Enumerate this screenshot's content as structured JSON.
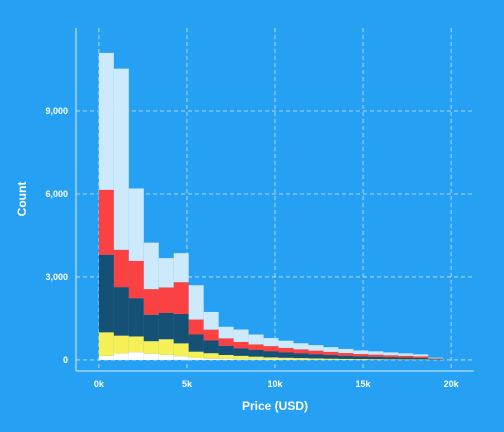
{
  "chart_data": {
    "type": "bar",
    "stacked": true,
    "xlabel": "Price (USD)",
    "ylabel": "Count",
    "xlim": [
      -1300,
      21300
    ],
    "ylim": [
      -400,
      12000
    ],
    "x_ticks": [
      {
        "value": 0,
        "label": "0k"
      },
      {
        "value": 5000,
        "label": "5k"
      },
      {
        "value": 10000,
        "label": "10k"
      },
      {
        "value": 15000,
        "label": "15k"
      },
      {
        "value": 20000,
        "label": "20k"
      }
    ],
    "y_ticks": [
      {
        "value": 0,
        "label": "0"
      },
      {
        "value": 3000,
        "label": "3,000"
      },
      {
        "value": 6000,
        "label": "6,000"
      },
      {
        "value": 9000,
        "label": "9,000"
      }
    ],
    "grid": true,
    "legend": "none",
    "bins": [
      {
        "start": 0,
        "end": 850
      },
      {
        "start": 850,
        "end": 1700
      },
      {
        "start": 1700,
        "end": 2550
      },
      {
        "start": 2550,
        "end": 3400
      },
      {
        "start": 3400,
        "end": 4250
      },
      {
        "start": 4250,
        "end": 5100
      },
      {
        "start": 5100,
        "end": 5950
      },
      {
        "start": 5950,
        "end": 6800
      },
      {
        "start": 6800,
        "end": 7650
      },
      {
        "start": 7650,
        "end": 8500
      },
      {
        "start": 8500,
        "end": 9350
      },
      {
        "start": 9350,
        "end": 10200
      },
      {
        "start": 10200,
        "end": 11050
      },
      {
        "start": 11050,
        "end": 11900
      },
      {
        "start": 11900,
        "end": 12750
      },
      {
        "start": 12750,
        "end": 13600
      },
      {
        "start": 13600,
        "end": 14450
      },
      {
        "start": 14450,
        "end": 15300
      },
      {
        "start": 15300,
        "end": 16150
      },
      {
        "start": 16150,
        "end": 17000
      },
      {
        "start": 17000,
        "end": 17850
      },
      {
        "start": 17850,
        "end": 18700
      },
      {
        "start": 18700,
        "end": 19550
      }
    ],
    "series": [
      {
        "color": "#ffffff",
        "values": [
          150,
          230,
          280,
          220,
          180,
          130,
          70,
          45,
          35,
          25,
          20,
          15,
          12,
          10,
          8,
          6,
          5,
          4,
          3,
          3,
          2,
          2,
          1
        ]
      },
      {
        "color": "#f5f055",
        "values": [
          850,
          650,
          570,
          460,
          570,
          470,
          230,
          200,
          145,
          125,
          100,
          80,
          68,
          58,
          48,
          40,
          34,
          28,
          25,
          20,
          18,
          15,
          10
        ]
      },
      {
        "color": "#155174",
        "values": [
          2800,
          1750,
          1380,
          950,
          950,
          1060,
          620,
          460,
          330,
          270,
          240,
          220,
          190,
          170,
          150,
          130,
          110,
          95,
          85,
          75,
          65,
          55,
          25
        ]
      },
      {
        "color": "#fb4141",
        "values": [
          2350,
          1350,
          1350,
          930,
          920,
          1150,
          540,
          390,
          270,
          230,
          200,
          185,
          165,
          145,
          130,
          115,
          100,
          85,
          78,
          70,
          62,
          55,
          20
        ]
      },
      {
        "color": "#cdeafc",
        "values": [
          4950,
          6550,
          2620,
          1680,
          1060,
          1050,
          1240,
          640,
          420,
          450,
          360,
          290,
          260,
          220,
          200,
          170,
          150,
          130,
          120,
          105,
          90,
          75,
          25
        ]
      }
    ]
  }
}
